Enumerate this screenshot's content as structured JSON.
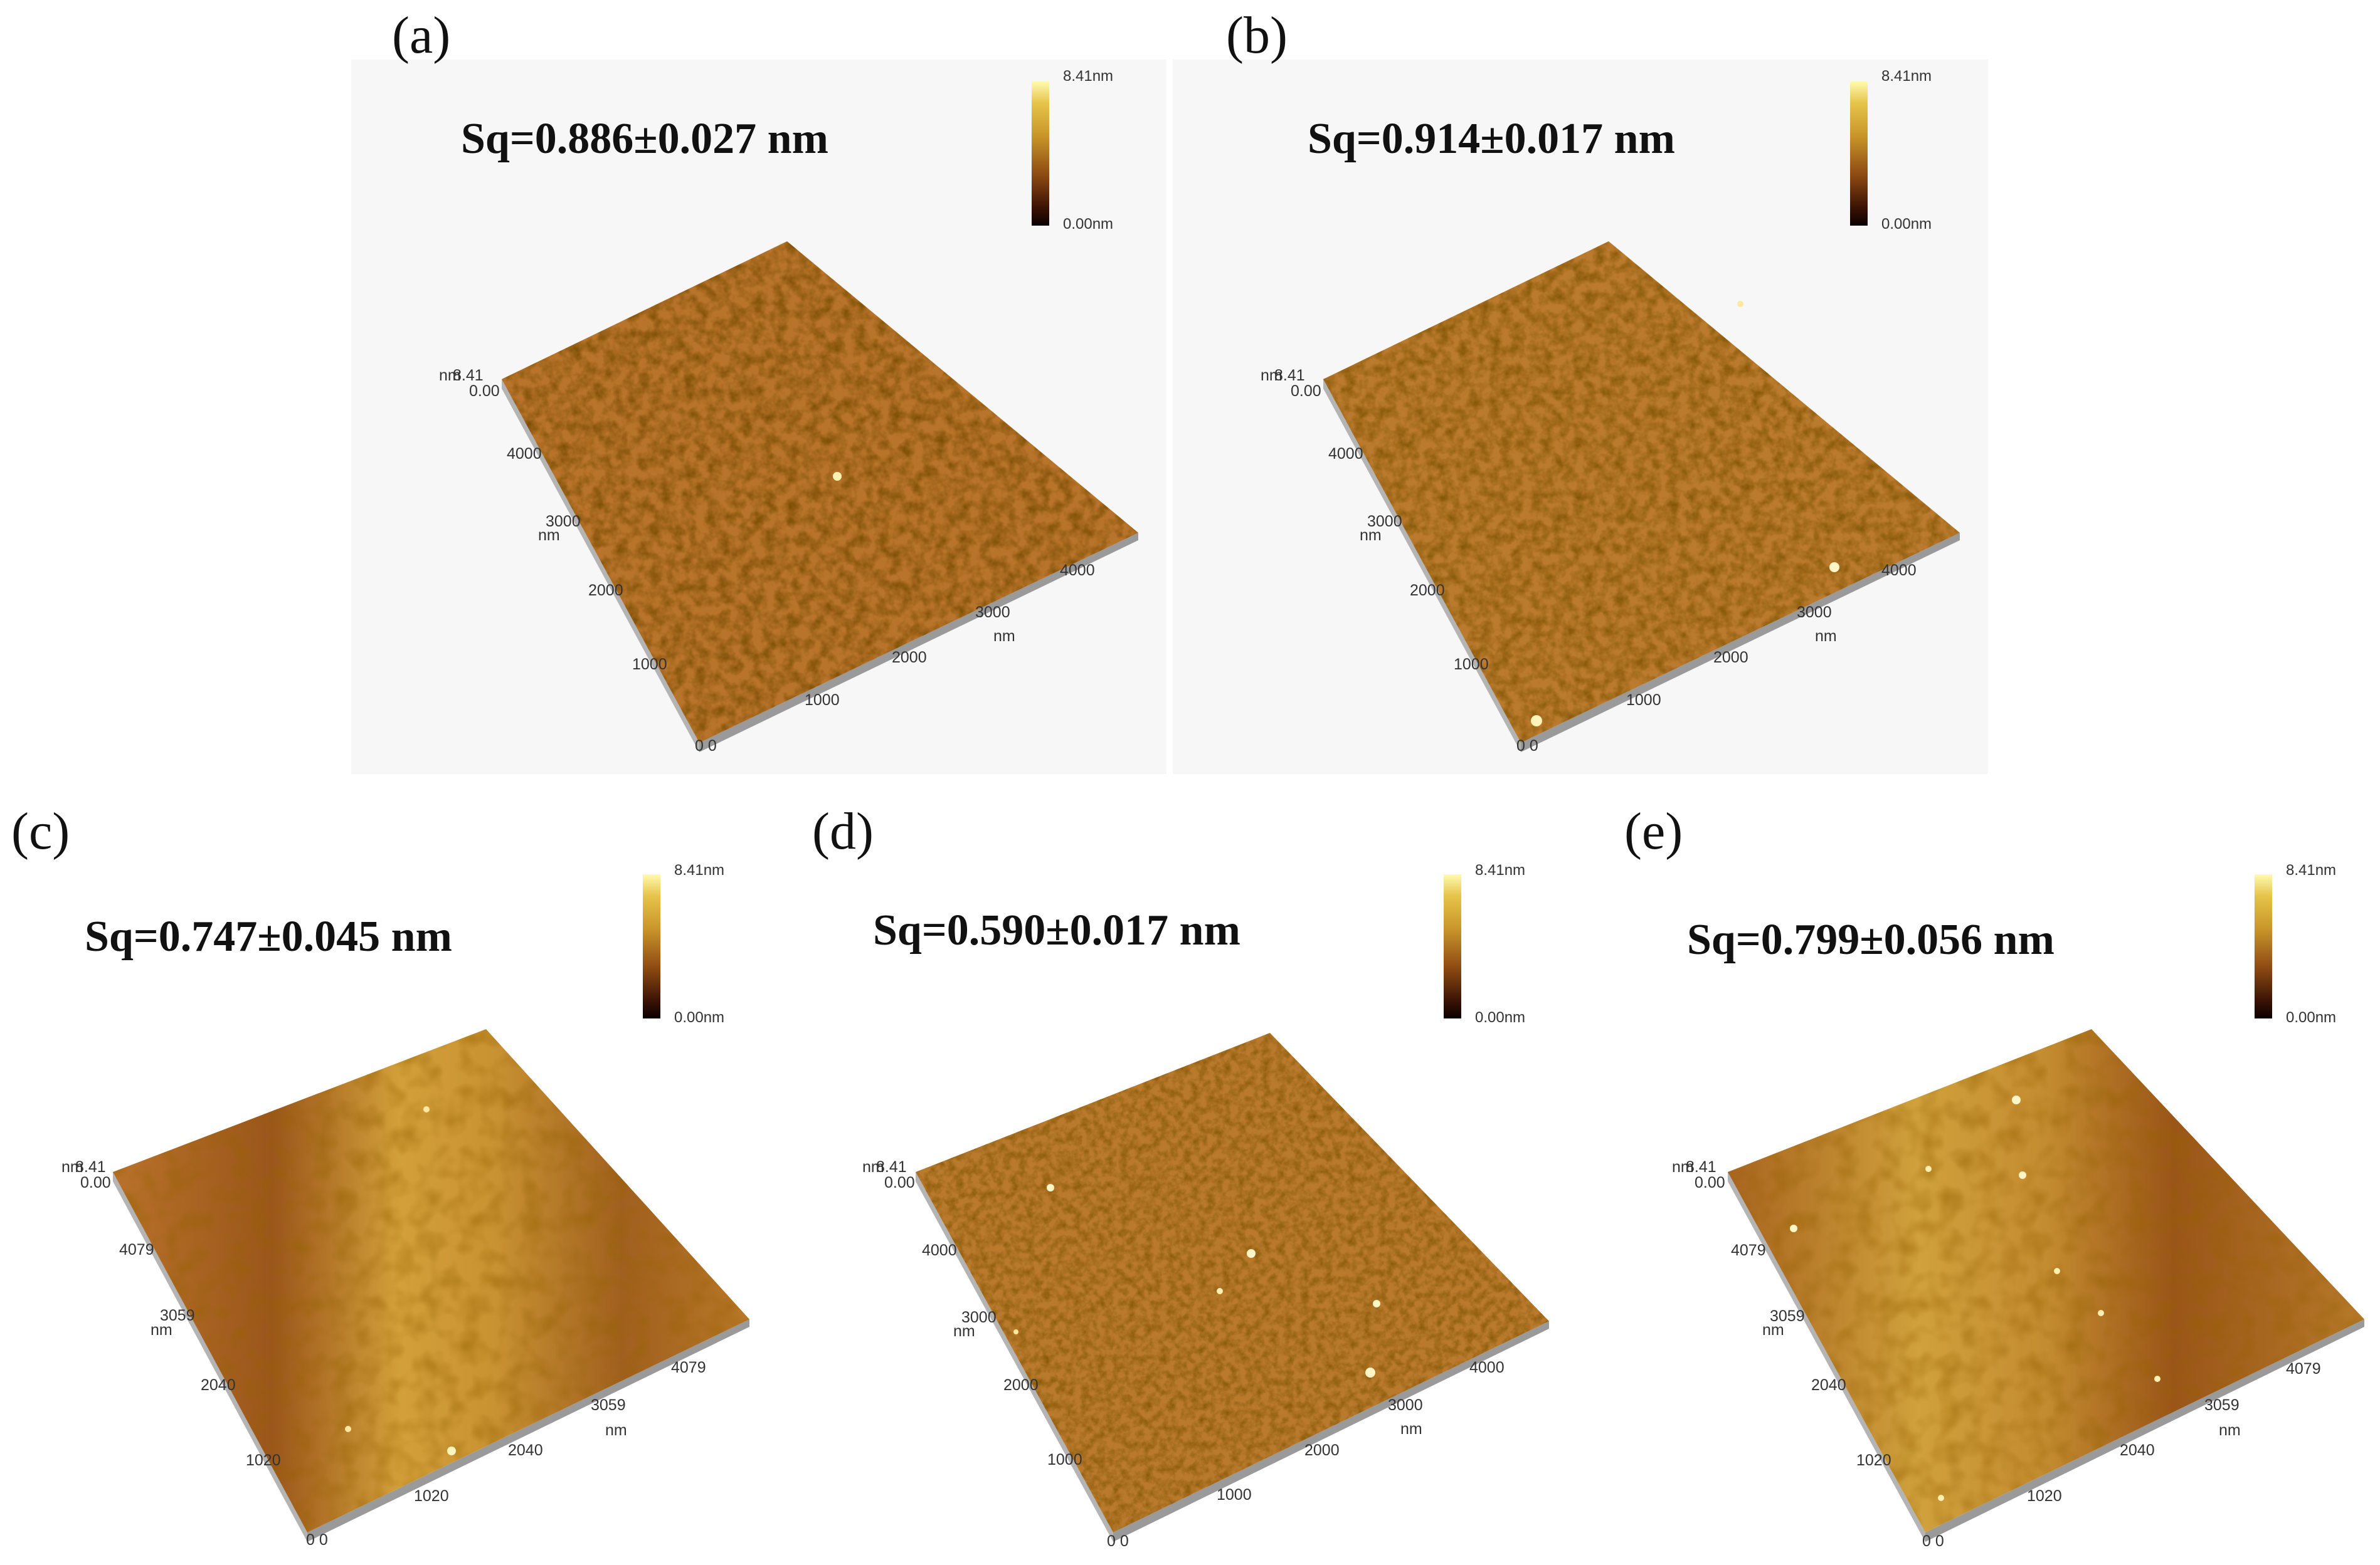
{
  "colorbar": {
    "max_label": "8.41nm",
    "min_label": "0.00nm"
  },
  "panels": [
    {
      "letter": "(a)",
      "sq": "Sq=0.886±0.027 nm",
      "z_top": "8.41",
      "z_unit": "nm",
      "z_bottom": "0.00",
      "y_unit": "nm",
      "x_unit": "nm",
      "y_ticks": [
        "4000",
        "3000",
        "2000",
        "1000"
      ],
      "x_ticks": [
        "1000",
        "2000",
        "3000",
        "4000"
      ],
      "origin": "0 0",
      "texture": "dense pits, medium-dark orange surface"
    },
    {
      "letter": "(b)",
      "sq": "Sq=0.914±0.017 nm",
      "z_top": "8.41",
      "z_unit": "nm",
      "z_bottom": "0.00",
      "y_unit": "nm",
      "x_unit": "nm",
      "y_ticks": [
        "4000",
        "3000",
        "2000",
        "1000"
      ],
      "x_ticks": [
        "1000",
        "2000",
        "3000",
        "4000"
      ],
      "origin": "0 0",
      "texture": "dense pits, slightly lighter orange surface"
    },
    {
      "letter": "(c)",
      "sq": "Sq=0.747±0.045 nm",
      "z_top": "8.41",
      "z_unit": "nm",
      "z_bottom": "0.00",
      "y_unit": "nm",
      "x_unit": "nm",
      "y_ticks": [
        "4079",
        "3059",
        "2040",
        "1020"
      ],
      "x_ticks": [
        "1020",
        "2040",
        "3059",
        "4079"
      ],
      "origin": "0 0",
      "texture": "smooth, light and dark diagonal bands"
    },
    {
      "letter": "(d)",
      "sq": "Sq=0.590±0.017 nm",
      "z_top": "8.41",
      "z_unit": "nm",
      "z_bottom": "0.00",
      "y_unit": "nm",
      "x_unit": "nm",
      "y_ticks": [
        "4000",
        "3000",
        "2000",
        "1000"
      ],
      "x_ticks": [
        "1000",
        "2000",
        "3000",
        "4000"
      ],
      "origin": "0 0",
      "texture": "fine pits with scattered bright particles"
    },
    {
      "letter": "(e)",
      "sq": "Sq=0.799±0.056 nm",
      "z_top": "8.41",
      "z_unit": "nm",
      "z_bottom": "0.00",
      "y_unit": "nm",
      "x_unit": "nm",
      "y_ticks": [
        "4079",
        "3059",
        "2040",
        "1020"
      ],
      "x_ticks": [
        "1020",
        "2040",
        "3059",
        "4079"
      ],
      "origin": "0 0",
      "texture": "diagonal bands with bright particles"
    }
  ]
}
